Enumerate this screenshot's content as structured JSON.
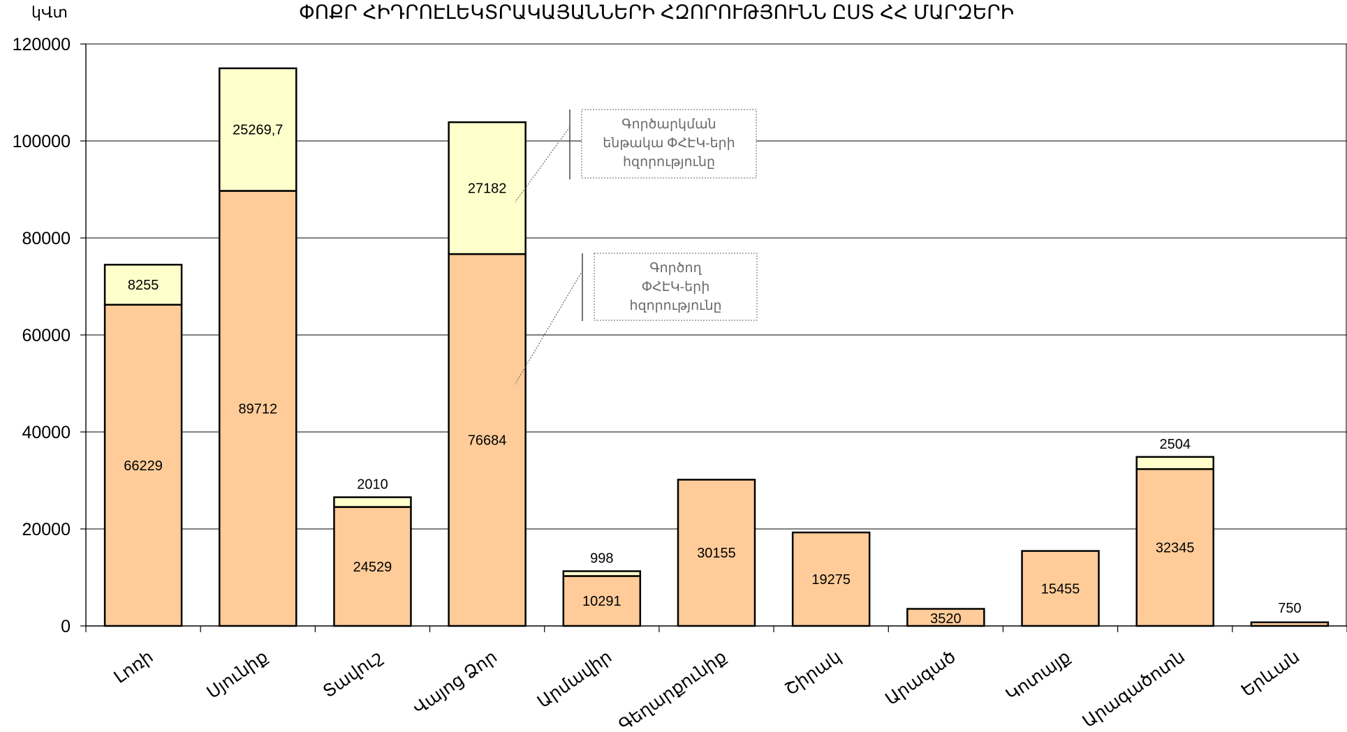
{
  "chart_data": {
    "type": "bar",
    "stacked": true,
    "title": "ՓՈՔՐ ՀԻԴՐՈԷԼԵԿՏՐԱԿԱՅԱՆՆԵՐԻ ՀԶՈՐՈՒԹՅՈՒՆՆ ԸՍՏ ՀՀ ՄԱՐԶԵՐԻ",
    "ylabel": "կՎտ",
    "ylim": [
      0,
      120000
    ],
    "yticks": [
      0,
      20000,
      40000,
      60000,
      80000,
      100000,
      120000
    ],
    "grid": true,
    "categories": [
      "Լոռի",
      "Սյունիք",
      "Տավուշ",
      "Վայոց Ձոր",
      "Արմավիր",
      "Գեղարքունիք",
      "Շիրակ",
      "Արագած",
      "Կոտայք",
      "Արագածոտն",
      "Երևան"
    ],
    "series": [
      {
        "name": "Գործող ՓՀԷԿ-երի հզորությունը",
        "color": "#FFCC99",
        "values": [
          66229,
          89712,
          24529,
          76684,
          10291,
          30155,
          19275,
          3520,
          15455,
          32345,
          750
        ],
        "labels": [
          "66229",
          "89712",
          "24529",
          "76684",
          "10291",
          "30155",
          "19275",
          "3520",
          "15455",
          "32345",
          "750"
        ]
      },
      {
        "name": "Գործարկման ենթակա ՓՀԷԿ-երի հզորությունը",
        "color": "#FFFFCC",
        "values": [
          8255,
          25269.7,
          2010,
          27182,
          998,
          0,
          0,
          0,
          0,
          2504,
          0
        ],
        "labels": [
          "8255",
          "25269,7",
          "2010",
          "27182",
          "998",
          "",
          "",
          "",
          "",
          "2504",
          ""
        ]
      }
    ],
    "annotations": [
      {
        "series": 1,
        "lines": [
          "Գործարկման",
          "ենթակա ՓՀԷԿ-երի",
          "հզորությունը"
        ]
      },
      {
        "series": 0,
        "lines": [
          "Գործող",
          "ՓՀԷԿ-երի",
          "հզորությունը"
        ]
      }
    ]
  }
}
